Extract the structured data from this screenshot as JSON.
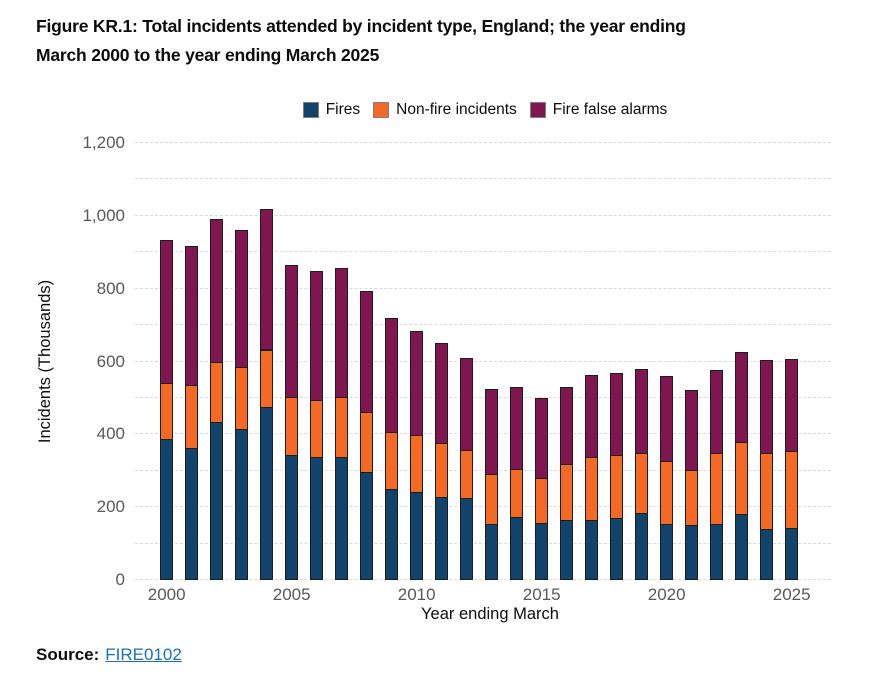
{
  "figure": {
    "title_lines": [
      "Figure KR.1: Total incidents attended by incident type, England; the year ending",
      "March 2000 to the year ending March 2025"
    ]
  },
  "source": {
    "label": "Source:",
    "link_text": "FIRE0102"
  },
  "colors": {
    "fires": "#12436D",
    "non_fire_incidents": "#F46A25",
    "fire_false_alarms": "#801650",
    "bar_border": "#1d1d1b",
    "grid": "#D9D9D9",
    "tick_text": "#595959",
    "text": "#0B0C0C",
    "link": "#1D70B8"
  },
  "chart_data": {
    "type": "bar",
    "stacked": true,
    "title": "Figure KR.1: Total incidents attended by incident type, England; the year ending March 2000 to the year ending March 2025",
    "xlabel": "Year ending March",
    "ylabel": "Incidents (Thousands)",
    "ylim": [
      0,
      1200
    ],
    "grid_step": 100,
    "grid": true,
    "legend_position": "top",
    "categories": [
      2000,
      2001,
      2002,
      2003,
      2004,
      2005,
      2006,
      2007,
      2008,
      2009,
      2010,
      2011,
      2012,
      2013,
      2014,
      2015,
      2016,
      2017,
      2018,
      2019,
      2020,
      2021,
      2022,
      2023,
      2024,
      2025
    ],
    "series": [
      {
        "name": "Fires",
        "key": "fires",
        "color": "#12436D",
        "values": [
          388,
          362,
          435,
          415,
          474,
          344,
          338,
          339,
          296,
          250,
          243,
          229,
          224,
          154,
          172,
          157,
          165,
          166,
          169,
          183,
          155,
          152,
          154,
          180,
          140,
          143
        ]
      },
      {
        "name": "Non-fire incidents",
        "key": "non-fire-incidents",
        "color": "#F46A25",
        "values": [
          154,
          173,
          164,
          169,
          159,
          158,
          157,
          163,
          165,
          156,
          154,
          147,
          134,
          137,
          133,
          122,
          154,
          172,
          175,
          165,
          171,
          150,
          194,
          199,
          208,
          211
        ]
      },
      {
        "name": "Fire false alarms",
        "key": "fire-false-alarms",
        "color": "#801650",
        "values": [
          391,
          381,
          393,
          377,
          386,
          362,
          353,
          356,
          334,
          313,
          286,
          275,
          252,
          234,
          225,
          220,
          212,
          226,
          224,
          232,
          234,
          220,
          230,
          247,
          255,
          252
        ]
      }
    ],
    "totals": [
      933,
      916,
      992,
      961,
      1019,
      864,
      848,
      858,
      795,
      719,
      683,
      651,
      610,
      525,
      530,
      499,
      531,
      564,
      568,
      580,
      560,
      522,
      578,
      626,
      603,
      606
    ],
    "yticks": [
      {
        "value": 0,
        "label": "0"
      },
      {
        "value": 200,
        "label": "200"
      },
      {
        "value": 400,
        "label": "400"
      },
      {
        "value": 600,
        "label": "600"
      },
      {
        "value": 800,
        "label": "800"
      },
      {
        "value": 1000,
        "label": "1,000"
      },
      {
        "value": 1200,
        "label": "1,200"
      }
    ],
    "xticks": [
      {
        "value": 2000,
        "label": "2000"
      },
      {
        "value": 2005,
        "label": "2005"
      },
      {
        "value": 2010,
        "label": "2010"
      },
      {
        "value": 2015,
        "label": "2015"
      },
      {
        "value": 2020,
        "label": "2020"
      },
      {
        "value": 2025,
        "label": "2025"
      }
    ]
  }
}
